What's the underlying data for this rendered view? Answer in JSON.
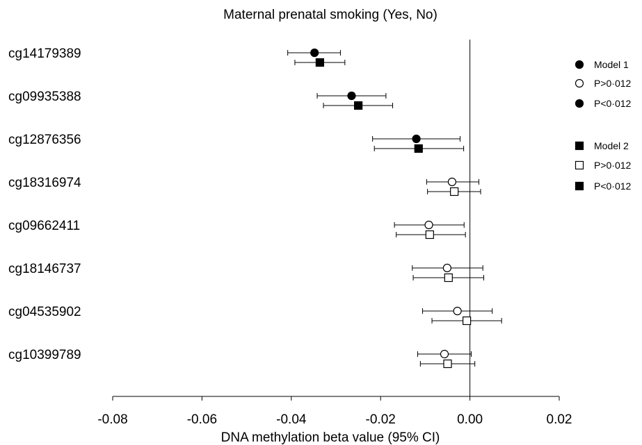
{
  "chart_data": {
    "type": "scatter",
    "subtype": "forest-plot",
    "title": "Maternal prenatal smoking (Yes, No)",
    "xlabel": "DNA methylation beta value (95% CI)",
    "xlim": [
      -0.08,
      0.02
    ],
    "xticks": [
      "-0.08",
      "-0.06",
      "-0.04",
      "-0.02",
      "0.00",
      "0.02"
    ],
    "xtick_values": [
      -0.08,
      -0.06,
      -0.04,
      -0.02,
      0.0,
      0.02
    ],
    "reference_line_x": 0.0,
    "grid": false,
    "legend_position": "right",
    "categories": [
      "cg14179389",
      "cg09935388",
      "cg12876356",
      "cg18316974",
      "cg09662411",
      "cg18146737",
      "cg04535902",
      "cg10399789"
    ],
    "series": [
      {
        "name": "Model 1",
        "marker": "circle",
        "estimates": [
          -0.0348,
          -0.0265,
          -0.012,
          -0.004,
          -0.0092,
          -0.0051,
          -0.0028,
          -0.0057
        ],
        "ci_low": [
          -0.0408,
          -0.0342,
          -0.0218,
          -0.0097,
          -0.0169,
          -0.0129,
          -0.0106,
          -0.0117
        ],
        "ci_high": [
          -0.029,
          -0.0188,
          -0.0022,
          0.002,
          -0.0013,
          0.0029,
          0.005,
          0.0003
        ],
        "significant": [
          true,
          true,
          true,
          false,
          false,
          false,
          false,
          false
        ]
      },
      {
        "name": "Model 2",
        "marker": "square",
        "estimates": [
          -0.0336,
          -0.025,
          -0.0115,
          -0.0035,
          -0.009,
          -0.0048,
          -0.0007,
          -0.005
        ],
        "ci_low": [
          -0.0392,
          -0.0328,
          -0.0214,
          -0.0095,
          -0.0165,
          -0.0127,
          -0.0085,
          -0.0111
        ],
        "ci_high": [
          -0.028,
          -0.0173,
          -0.0014,
          0.0024,
          -0.001,
          0.0031,
          0.0071,
          0.0011
        ],
        "significant": [
          true,
          true,
          true,
          false,
          false,
          false,
          false,
          false
        ]
      }
    ],
    "legend": [
      {
        "label": "Model 1",
        "marker": "circle",
        "fill": "filled"
      },
      {
        "label": "P>0·012",
        "marker": "circle",
        "fill": "open"
      },
      {
        "label": "P<0·012",
        "marker": "circle",
        "fill": "filled"
      },
      {
        "label": "Model 2",
        "marker": "square",
        "fill": "filled"
      },
      {
        "label": "P>0·012",
        "marker": "square",
        "fill": "open"
      },
      {
        "label": "P<0·012",
        "marker": "square",
        "fill": "filled"
      }
    ]
  },
  "colors": {
    "marker": "#000000",
    "line": "#000000",
    "background": "#ffffff"
  }
}
